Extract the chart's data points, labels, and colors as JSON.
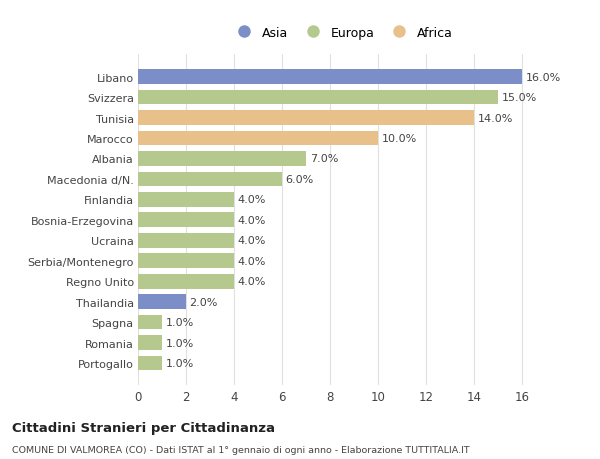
{
  "categories": [
    "Portogallo",
    "Romania",
    "Spagna",
    "Thailandia",
    "Regno Unito",
    "Serbia/Montenegro",
    "Ucraina",
    "Bosnia-Erzegovina",
    "Finlandia",
    "Macedonia d/N.",
    "Albania",
    "Marocco",
    "Tunisia",
    "Svizzera",
    "Libano"
  ],
  "values": [
    1.0,
    1.0,
    1.0,
    2.0,
    4.0,
    4.0,
    4.0,
    4.0,
    4.0,
    6.0,
    7.0,
    10.0,
    14.0,
    15.0,
    16.0
  ],
  "continents": [
    "Europa",
    "Europa",
    "Europa",
    "Asia",
    "Europa",
    "Europa",
    "Europa",
    "Europa",
    "Europa",
    "Europa",
    "Europa",
    "Africa",
    "Africa",
    "Europa",
    "Asia"
  ],
  "colors": {
    "Asia": "#7b8ec8",
    "Europa": "#b5c98e",
    "Africa": "#e8c08a"
  },
  "legend_labels": [
    "Asia",
    "Europa",
    "Africa"
  ],
  "legend_colors": [
    "#7b8ec8",
    "#b5c98e",
    "#e8c08a"
  ],
  "title": "Cittadini Stranieri per Cittadinanza",
  "subtitle": "COMUNE DI VALMOREA (CO) - Dati ISTAT al 1° gennaio di ogni anno - Elaborazione TUTTITALIA.IT",
  "xlim": [
    0,
    17
  ],
  "xticks": [
    0,
    2,
    4,
    6,
    8,
    10,
    12,
    14,
    16
  ],
  "background_color": "#ffffff",
  "plot_background": "#ffffff",
  "grid_color": "#e0e0e0",
  "text_color": "#444444",
  "label_fontsize": 8.0,
  "tick_fontsize": 8.5,
  "value_fontsize": 8.0,
  "bar_height": 0.72
}
